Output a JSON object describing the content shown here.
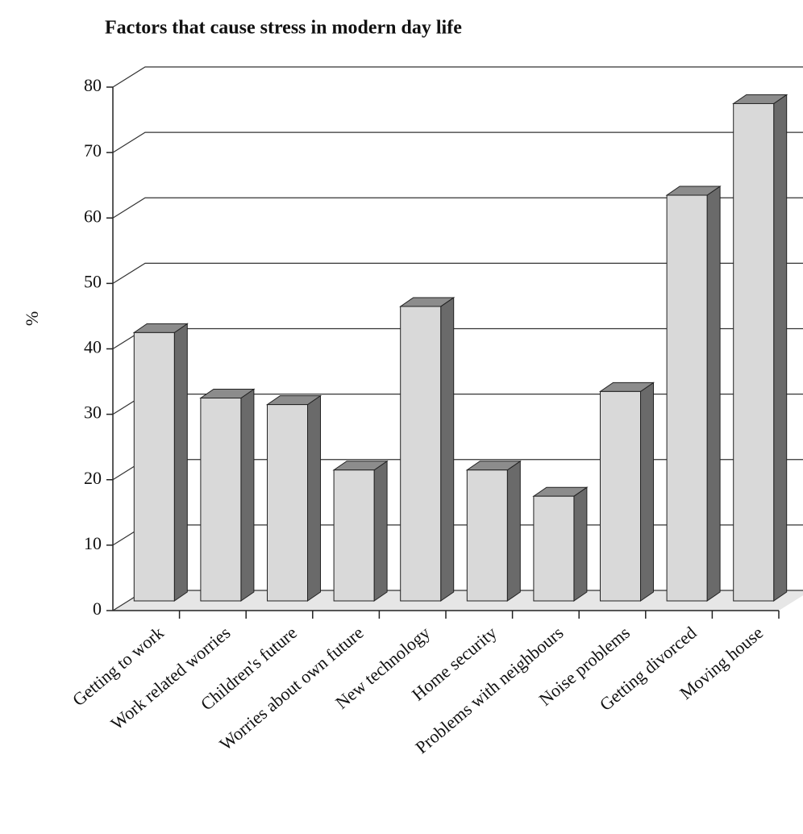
{
  "chart_data": {
    "type": "bar3d",
    "title": "Factors that cause stress in modern day life",
    "y_label": "%",
    "categories": [
      "Getting to work",
      "Work related worries",
      "Children's future",
      "Worries about own future",
      "New technology",
      "Home security",
      "Problems with neighbours",
      "Noise problems",
      "Getting divorced",
      "Moving house"
    ],
    "values": [
      41,
      31,
      30,
      20,
      45,
      20,
      16,
      32,
      62,
      76
    ],
    "color": "#d9d9d9",
    "ylim": [
      0,
      80
    ],
    "yticks": [
      0,
      10,
      20,
      30,
      40,
      50,
      60,
      70,
      80
    ],
    "grid": true
  }
}
